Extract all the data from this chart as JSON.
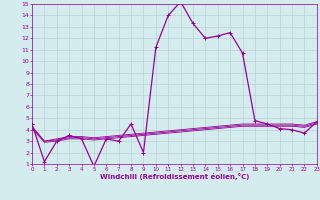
{
  "x": [
    0,
    1,
    2,
    3,
    4,
    5,
    6,
    7,
    8,
    9,
    10,
    11,
    12,
    13,
    14,
    15,
    16,
    17,
    18,
    19,
    20,
    21,
    22,
    23
  ],
  "lines": [
    {
      "y": [
        4.5,
        1.2,
        3.0,
        3.5,
        3.2,
        0.8,
        3.2,
        3.0,
        4.5,
        2.0,
        11.2,
        14.0,
        15.2,
        13.3,
        12.0,
        12.2,
        12.5,
        10.7,
        4.8,
        4.5,
        4.1,
        4.0,
        3.7,
        4.7
      ],
      "color": "#990099",
      "lw": 0.9,
      "marker": "+"
    },
    {
      "y": [
        4.3,
        3.0,
        3.2,
        3.4,
        3.4,
        3.3,
        3.4,
        3.5,
        3.6,
        3.7,
        3.8,
        3.9,
        4.0,
        4.1,
        4.2,
        4.3,
        4.4,
        4.5,
        4.5,
        4.5,
        4.5,
        4.5,
        4.4,
        4.7
      ],
      "color": "#990099",
      "lw": 0.6,
      "marker": null
    },
    {
      "y": [
        4.2,
        3.0,
        3.1,
        3.3,
        3.3,
        3.2,
        3.3,
        3.4,
        3.5,
        3.6,
        3.7,
        3.8,
        3.9,
        4.0,
        4.1,
        4.2,
        4.3,
        4.4,
        4.4,
        4.4,
        4.4,
        4.4,
        4.3,
        4.6
      ],
      "color": "#990099",
      "lw": 0.6,
      "marker": null
    },
    {
      "y": [
        4.1,
        2.9,
        3.0,
        3.2,
        3.2,
        3.1,
        3.2,
        3.3,
        3.4,
        3.5,
        3.6,
        3.7,
        3.8,
        3.9,
        4.0,
        4.1,
        4.2,
        4.3,
        4.3,
        4.3,
        4.3,
        4.3,
        4.2,
        4.5
      ],
      "color": "#990099",
      "lw": 0.6,
      "marker": null
    }
  ],
  "xlim": [
    0,
    23
  ],
  "ylim": [
    1,
    15
  ],
  "yticks": [
    1,
    2,
    3,
    4,
    5,
    6,
    7,
    8,
    9,
    10,
    11,
    12,
    13,
    14,
    15
  ],
  "xticks": [
    0,
    1,
    2,
    3,
    4,
    5,
    6,
    7,
    8,
    9,
    10,
    11,
    12,
    13,
    14,
    15,
    16,
    17,
    18,
    19,
    20,
    21,
    22,
    23
  ],
  "xlabel": "Windchill (Refroidissement éolien,°C)",
  "background_color": "#d5ecee",
  "grid_color": "#b0cccc",
  "spine_color": "#990099",
  "tick_color": "#990099",
  "label_color": "#990099"
}
